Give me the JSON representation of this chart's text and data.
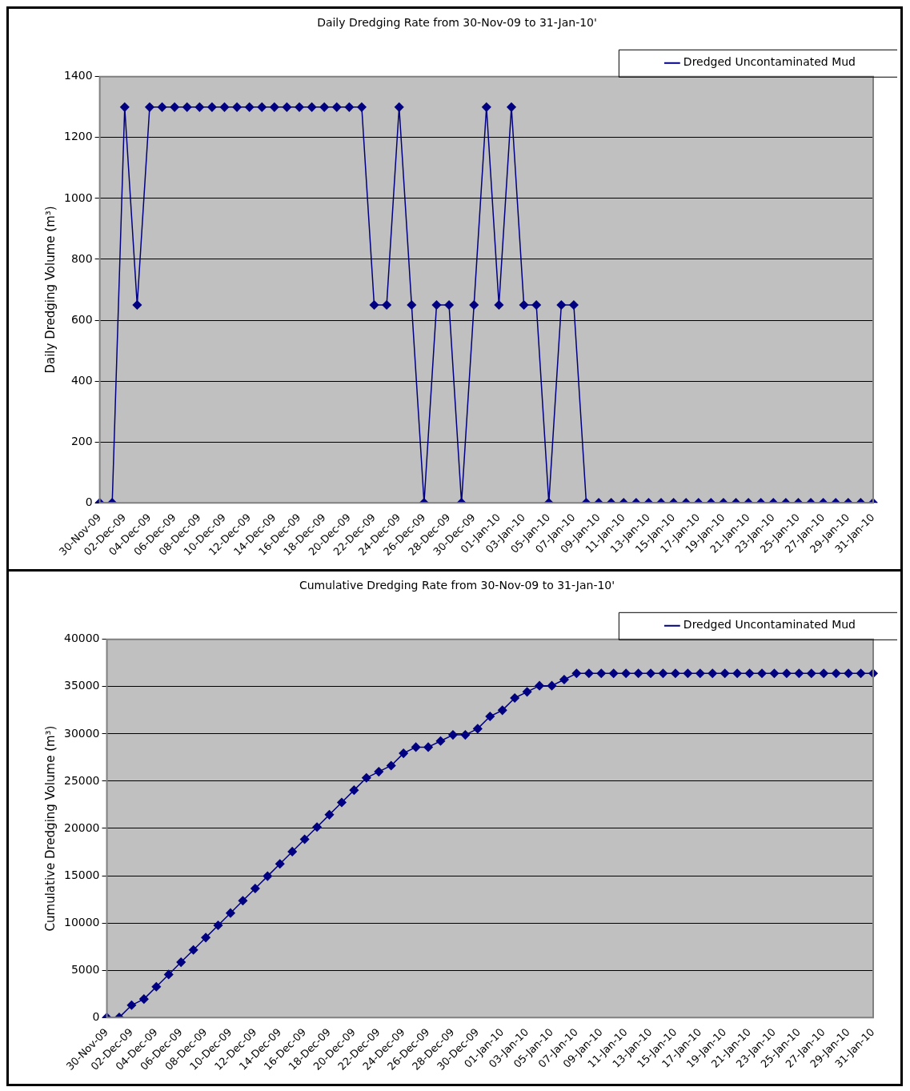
{
  "chart_data": [
    {
      "type": "line",
      "title": "Daily Dredging Rate from 30-Nov-09 to 31-Jan-10'",
      "ylabel": "Daily Dredging Volume (m³)",
      "categories": [
        "30-Nov-09",
        null,
        "02-Dec-09",
        null,
        "04-Dec-09",
        null,
        "06-Dec-09",
        null,
        "08-Dec-09",
        null,
        "10-Dec-09",
        null,
        "12-Dec-09",
        null,
        "14-Dec-09",
        null,
        "16-Dec-09",
        null,
        "18-Dec-09",
        null,
        "20-Dec-09",
        null,
        "22-Dec-09",
        null,
        "24-Dec-09",
        null,
        "26-Dec-09",
        null,
        "28-Dec-09",
        null,
        "30-Dec-09",
        null,
        "01-Jan-10",
        null,
        "03-Jan-10",
        null,
        "05-Jan-10",
        null,
        "07-Jan-10",
        null,
        "09-Jan-10",
        null,
        "11-Jan-10",
        null,
        "13-Jan-10",
        null,
        "15-Jan-10",
        null,
        "17-Jan-10",
        null,
        "19-Jan-10",
        null,
        "21-Jan-10",
        null,
        "23-Jan-10",
        null,
        "25-Jan-10",
        null,
        "27-Jan-10",
        null,
        "29-Jan-10",
        null,
        "31-Jan-10"
      ],
      "series": [
        {
          "name": "Dredged Uncontaminated Mud",
          "color": "#000080",
          "values": [
            0,
            0,
            1300,
            650,
            1300,
            1300,
            1300,
            1300,
            1300,
            1300,
            1300,
            1300,
            1300,
            1300,
            1300,
            1300,
            1300,
            1300,
            1300,
            1300,
            1300,
            1300,
            650,
            650,
            1300,
            650,
            0,
            650,
            650,
            0,
            650,
            1300,
            650,
            1300,
            650,
            650,
            0,
            650,
            650,
            0,
            0,
            0,
            0,
            0,
            0,
            0,
            0,
            0,
            0,
            0,
            0,
            0,
            0,
            0,
            0,
            0,
            0,
            0,
            0,
            0,
            0,
            0,
            0
          ]
        }
      ],
      "ylim": [
        0,
        1400
      ],
      "yticks": [
        0,
        200,
        400,
        600,
        800,
        1000,
        1200,
        1400
      ],
      "grid": "y",
      "legend": "top right",
      "marker": "diamond"
    },
    {
      "type": "line",
      "title": "Cumulative Dredging Rate from 30-Nov-09 to 31-Jan-10'",
      "ylabel": "Cumulative Dredging Volume (m³)",
      "categories": [
        "30-Nov-09",
        null,
        "02-Dec-09",
        null,
        "04-Dec-09",
        null,
        "06-Dec-09",
        null,
        "08-Dec-09",
        null,
        "10-Dec-09",
        null,
        "12-Dec-09",
        null,
        "14-Dec-09",
        null,
        "16-Dec-09",
        null,
        "18-Dec-09",
        null,
        "20-Dec-09",
        null,
        "22-Dec-09",
        null,
        "24-Dec-09",
        null,
        "26-Dec-09",
        null,
        "28-Dec-09",
        null,
        "30-Dec-09",
        null,
        "01-Jan-10",
        null,
        "03-Jan-10",
        null,
        "05-Jan-10",
        null,
        "07-Jan-10",
        null,
        "09-Jan-10",
        null,
        "11-Jan-10",
        null,
        "13-Jan-10",
        null,
        "15-Jan-10",
        null,
        "17-Jan-10",
        null,
        "19-Jan-10",
        null,
        "21-Jan-10",
        null,
        "23-Jan-10",
        null,
        "25-Jan-10",
        null,
        "27-Jan-10",
        null,
        "29-Jan-10",
        null,
        "31-Jan-10"
      ],
      "series": [
        {
          "name": "Dredged Uncontaminated Mud",
          "color": "#000080",
          "values": [
            0,
            0,
            1300,
            1950,
            3250,
            4550,
            5850,
            7150,
            8450,
            9750,
            11050,
            12350,
            13650,
            14950,
            16250,
            17550,
            18850,
            20150,
            21450,
            22750,
            24050,
            25350,
            26000,
            26650,
            27950,
            28600,
            28600,
            29250,
            29900,
            29900,
            30550,
            31850,
            32500,
            33800,
            34450,
            35100,
            35100,
            35750,
            36400,
            36400,
            36400,
            36400,
            36400,
            36400,
            36400,
            36400,
            36400,
            36400,
            36400,
            36400,
            36400,
            36400,
            36400,
            36400,
            36400,
            36400,
            36400,
            36400,
            36400,
            36400,
            36400,
            36400,
            36400
          ]
        }
      ],
      "ylim": [
        0,
        40000
      ],
      "yticks": [
        0,
        5000,
        10000,
        15000,
        20000,
        25000,
        30000,
        35000,
        40000
      ],
      "grid": "y",
      "legend": "top right",
      "marker": "diamond"
    }
  ]
}
